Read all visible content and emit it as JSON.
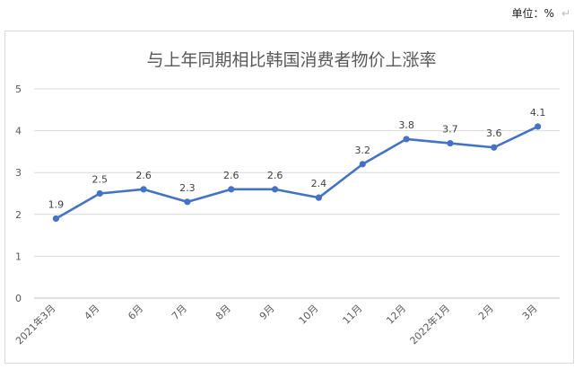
{
  "unit": {
    "label": "单位：%",
    "mark": "↵"
  },
  "chart_data": {
    "type": "line",
    "title": "与上年同期相比韩国消费者物价上涨率",
    "xlabel": "",
    "ylabel": "",
    "ylim": [
      0,
      5
    ],
    "yticks": [
      0,
      1,
      2,
      3,
      4,
      5
    ],
    "grid": true,
    "categories": [
      "2021年3月",
      "4月",
      "6月",
      "7月",
      "8月",
      "9月",
      "10月",
      "11月",
      "12月",
      "2022年1月",
      "2月",
      "3月"
    ],
    "series": [
      {
        "values": [
          1.9,
          2.5,
          2.6,
          2.3,
          2.6,
          2.6,
          2.4,
          3.2,
          3.8,
          3.7,
          3.6,
          4.1
        ],
        "labels": [
          "1.9",
          "2.5",
          "2.6",
          "2.3",
          "2.6",
          "2.6",
          "2.4",
          "3.2",
          "3.8",
          "3.7",
          "3.6",
          "4.1"
        ],
        "color": "#4472c4"
      }
    ]
  }
}
